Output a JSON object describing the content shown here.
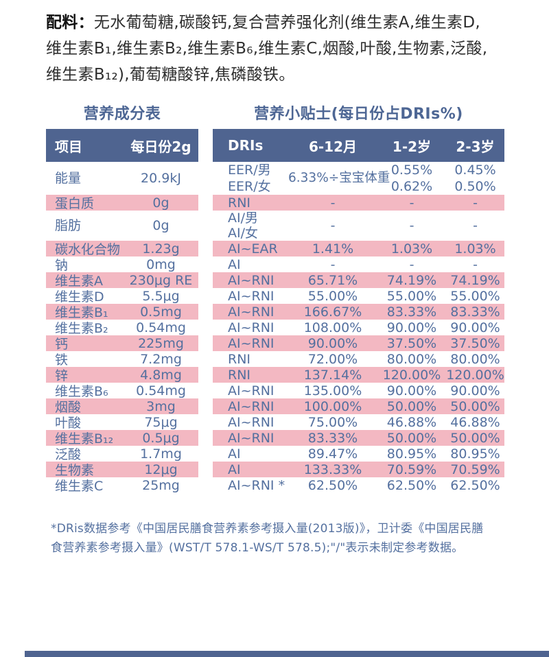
{
  "ingredients": {
    "label": "配料：",
    "text": "无水葡萄糖,碳酸钙,复合营养强化剂(维生素A,维生素D,\n维生素B₁,维生素B₂,维生素B₆,维生素C,烟酸,叶酸,生物素,泛酸,\n维生素B₁₂),葡萄糖酸锌,焦磷酸铁。"
  },
  "left_table": {
    "title": "营养成分表",
    "headers": {
      "item": "项目",
      "amount": "每日份2g"
    }
  },
  "right_table": {
    "title": "营养小贴士(每日份占DRIs%)",
    "headers": {
      "dris": "DRIs",
      "m6_12": "6-12月",
      "y1_2": "1-2岁",
      "y2_3": "2-3岁"
    }
  },
  "rows": [
    {
      "item": "能量",
      "amount": "20.9kJ",
      "dris": "EER/男\nEER/女",
      "m6_12": "6.33%÷宝宝体重",
      "y1_2": "0.55%\n0.62%",
      "y2_3": "0.45%\n0.50%"
    },
    {
      "item": "蛋白质",
      "amount": "0g",
      "dris": "RNI",
      "m6_12": "-",
      "y1_2": "-",
      "y2_3": "-"
    },
    {
      "item": "脂肪",
      "amount": "0g",
      "dris": "AI/男\nAI/女",
      "m6_12": "-",
      "y1_2": "-",
      "y2_3": "-"
    },
    {
      "item": "碳水化合物",
      "amount": "1.23g",
      "dris": "AI~EAR",
      "m6_12": "1.41%",
      "y1_2": "1.03%",
      "y2_3": "1.03%"
    },
    {
      "item": "钠",
      "amount": "0mg",
      "dris": "AI",
      "m6_12": "-",
      "y1_2": "-",
      "y2_3": "-"
    },
    {
      "item": "维生素A",
      "amount": "230μg RE",
      "dris": "AI~RNI",
      "m6_12": "65.71%",
      "y1_2": "74.19%",
      "y2_3": "74.19%"
    },
    {
      "item": "维生素D",
      "amount": "5.5μg",
      "dris": "AI~RNI",
      "m6_12": "55.00%",
      "y1_2": "55.00%",
      "y2_3": "55.00%"
    },
    {
      "item": "维生素B₁",
      "amount": "0.5mg",
      "dris": "AI~RNI",
      "m6_12": "166.67%",
      "y1_2": "83.33%",
      "y2_3": "83.33%"
    },
    {
      "item": "维生素B₂",
      "amount": "0.54mg",
      "dris": "AI~RNI",
      "m6_12": "108.00%",
      "y1_2": "90.00%",
      "y2_3": "90.00%"
    },
    {
      "item": "钙",
      "amount": "225mg",
      "dris": "AI~RNI",
      "m6_12": "90.00%",
      "y1_2": "37.50%",
      "y2_3": "37.50%"
    },
    {
      "item": "铁",
      "amount": "7.2mg",
      "dris": "RNI",
      "m6_12": "72.00%",
      "y1_2": "80.00%",
      "y2_3": "80.00%"
    },
    {
      "item": "锌",
      "amount": "4.8mg",
      "dris": "RNI",
      "m6_12": "137.14%",
      "y1_2": "120.00%",
      "y2_3": "120.00%"
    },
    {
      "item": "维生素B₆",
      "amount": "0.54mg",
      "dris": "AI~RNI",
      "m6_12": "135.00%",
      "y1_2": "90.00%",
      "y2_3": "90.00%"
    },
    {
      "item": "烟酸",
      "amount": "3mg",
      "dris": "AI~RNI",
      "m6_12": "100.00%",
      "y1_2": "50.00%",
      "y2_3": "50.00%"
    },
    {
      "item": "叶酸",
      "amount": "75μg",
      "dris": "AI~RNI",
      "m6_12": "75.00%",
      "y1_2": "46.88%",
      "y2_3": "46.88%"
    },
    {
      "item": "维生素B₁₂",
      "amount": "0.5μg",
      "dris": "AI~RNI",
      "m6_12": "83.33%",
      "y1_2": "50.00%",
      "y2_3": "50.00%"
    },
    {
      "item": "泛酸",
      "amount": "1.7mg",
      "dris": "AI",
      "m6_12": "89.47%",
      "y1_2": "80.95%",
      "y2_3": "80.95%"
    },
    {
      "item": "生物素",
      "amount": "12μg",
      "dris": "AI",
      "m6_12": "133.33%",
      "y1_2": "70.59%",
      "y2_3": "70.59%"
    },
    {
      "item": "维生素C",
      "amount": "25mg",
      "dris": "AI~RNI *",
      "m6_12": "62.50%",
      "y1_2": "62.50%",
      "y2_3": "62.50%"
    }
  ],
  "footnote": "*DRis数据参考《中国居民膳食营养素参考摄入量(2013版)》，卫计委《中国居民膳\n食营养素参考摄入量》(WST/T 578.1-WS/T 578.5);\"/\"表示未制定参考数据。",
  "colors": {
    "header_blue": "#4f6490",
    "row_pink": "#f3b8c2",
    "text_blue": "#54709f"
  }
}
